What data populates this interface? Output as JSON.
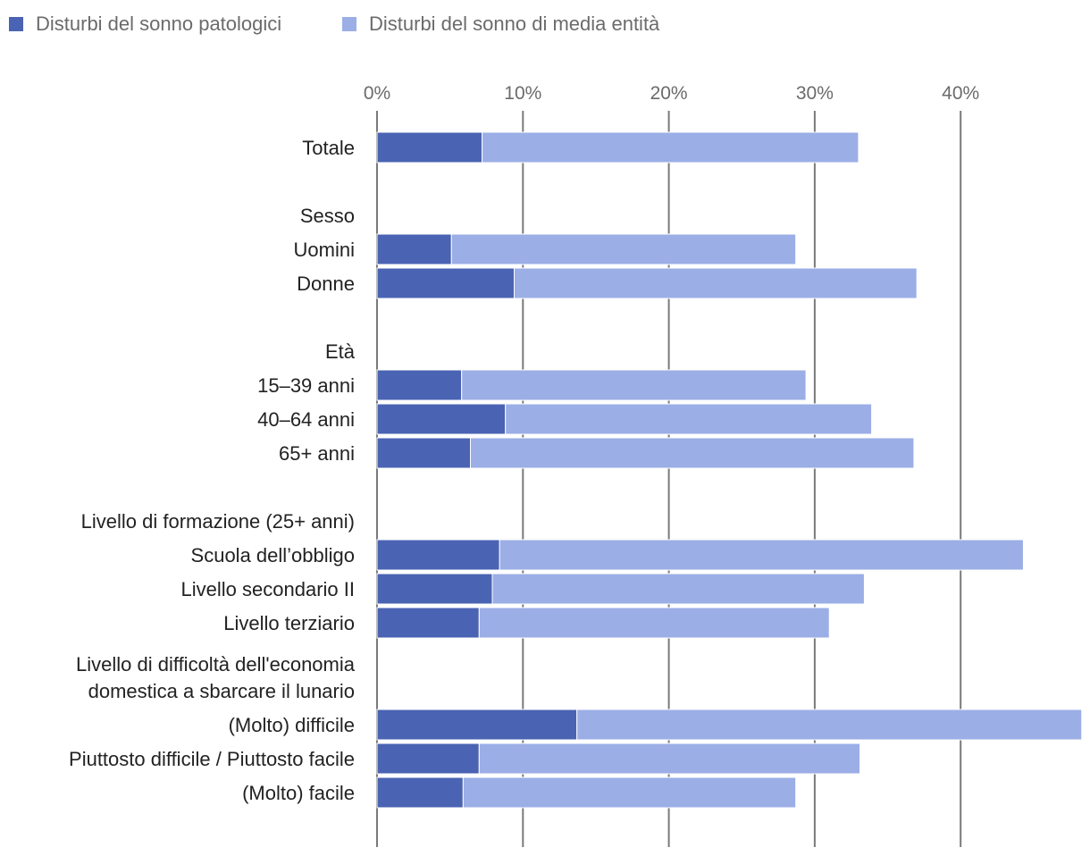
{
  "chart_data": {
    "type": "bar",
    "orientation": "horizontal",
    "stacked": true,
    "title": "",
    "xlabel": "",
    "ylabel": "",
    "xlim": [
      0,
      48
    ],
    "x_ticks": [
      0,
      10,
      20,
      30,
      40
    ],
    "x_tick_labels": [
      "0%",
      "10%",
      "20%",
      "30%",
      "40%"
    ],
    "grid": true,
    "legend_position": "top-left",
    "series": [
      {
        "name": "Disturbi del sonno patologici",
        "color": "#4a63b3"
      },
      {
        "name": "Disturbi del sonno di media entità",
        "color": "#9baee6"
      }
    ],
    "rows": [
      {
        "label": [
          "Totale"
        ],
        "values": [
          7.2,
          25.8
        ]
      },
      {
        "label": [],
        "spacer": true
      },
      {
        "label": [
          "Sesso"
        ],
        "header": true
      },
      {
        "label": [
          "Uomini"
        ],
        "values": [
          5.1,
          23.6
        ]
      },
      {
        "label": [
          "Donne"
        ],
        "values": [
          9.4,
          27.6
        ]
      },
      {
        "label": [],
        "spacer": true
      },
      {
        "label": [
          "Età"
        ],
        "header": true
      },
      {
        "label": [
          "15–39 anni"
        ],
        "values": [
          5.8,
          23.6
        ]
      },
      {
        "label": [
          "40–64 anni"
        ],
        "values": [
          8.8,
          25.1
        ]
      },
      {
        "label": [
          "65+ anni"
        ],
        "values": [
          6.4,
          30.4
        ]
      },
      {
        "label": [],
        "spacer": true
      },
      {
        "label": [
          "Livello di formazione (25+ anni)"
        ],
        "header": true
      },
      {
        "label": [
          "Scuola dell’obbligo"
        ],
        "values": [
          8.4,
          35.9
        ]
      },
      {
        "label": [
          "Livello secondario II"
        ],
        "values": [
          7.9,
          25.5
        ]
      },
      {
        "label": [
          "Livello terziario"
        ],
        "values": [
          7.0,
          24.0
        ]
      },
      {
        "label": [],
        "spacer": true
      },
      {
        "label": [
          "Livello di difficoltà dell'economia",
          "domestica a sbarcare il lunario"
        ],
        "header": true
      },
      {
        "label": [
          "(Molto) difficile"
        ],
        "values": [
          13.7,
          34.6
        ]
      },
      {
        "label": [
          "Piuttosto difficile / Piuttosto facile"
        ],
        "values": [
          7.0,
          26.1
        ]
      },
      {
        "label": [
          "(Molto) facile"
        ],
        "values": [
          5.9,
          22.8
        ]
      }
    ]
  }
}
